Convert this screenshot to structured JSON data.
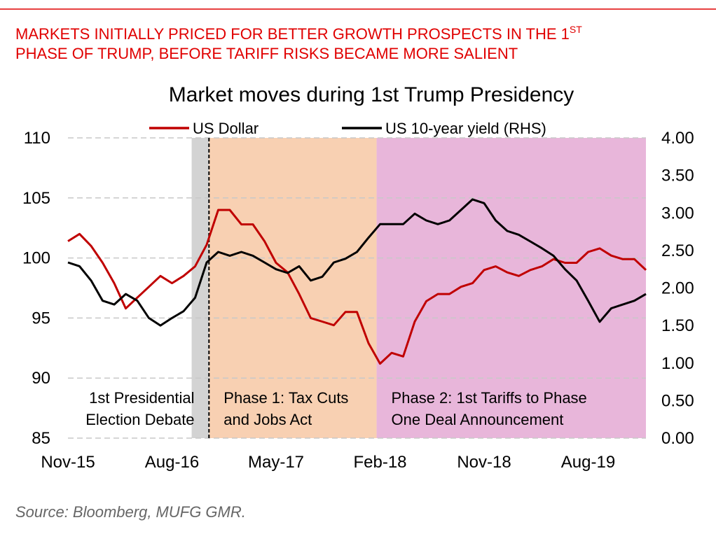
{
  "header": {
    "line1": "MARKETS INITIALLY PRICED FOR BETTER GROWTH PROSPECTS IN THE 1",
    "superscript": "ST",
    "line2": "PHASE OF TRUMP, BEFORE TARIFF RISKS BECAME MORE SALIENT"
  },
  "chart_data": {
    "type": "line",
    "title": "Market moves during 1st Trump Presidency",
    "categories": [
      "Nov-15",
      null,
      null,
      null,
      null,
      null,
      null,
      null,
      null,
      "Aug-16",
      null,
      null,
      null,
      null,
      null,
      null,
      null,
      null,
      "May-17",
      null,
      null,
      null,
      null,
      null,
      null,
      null,
      null,
      "Feb-18",
      null,
      null,
      null,
      null,
      null,
      null,
      null,
      null,
      "Nov-18",
      null,
      null,
      null,
      null,
      null,
      null,
      null,
      null,
      "Aug-19",
      null,
      null,
      null,
      null,
      null
    ],
    "series": [
      {
        "name": "US Dollar",
        "color": "#c00000",
        "axis": "y",
        "values": [
          101.4,
          102,
          101,
          99.6,
          97.9,
          95.8,
          96.7,
          97.6,
          98.5,
          97.9,
          98.5,
          99.3,
          101.1,
          104,
          104,
          102.8,
          102.8,
          101.4,
          99.6,
          98.8,
          97,
          95,
          94.7,
          94.4,
          95.5,
          95.5,
          92.9,
          91.2,
          92.1,
          91.8,
          94.7,
          96.4,
          97,
          97,
          97.6,
          97.9,
          99,
          99.3,
          98.8,
          98.5,
          99,
          99.3,
          99.9,
          99.6,
          99.6,
          100.5,
          100.8,
          100.2,
          99.9,
          99.9,
          99
        ]
      },
      {
        "name": "US 10-year yield (RHS)",
        "color": "#000000",
        "axis": "y2",
        "values": [
          2.34,
          2.29,
          2.1,
          1.83,
          1.78,
          1.92,
          1.83,
          1.6,
          1.5,
          1.6,
          1.69,
          1.87,
          2.34,
          2.48,
          2.43,
          2.48,
          2.43,
          2.34,
          2.25,
          2.2,
          2.29,
          2.1,
          2.15,
          2.34,
          2.39,
          2.48,
          2.67,
          2.85,
          2.85,
          2.85,
          2.99,
          2.9,
          2.85,
          2.9,
          3.04,
          3.18,
          3.13,
          2.9,
          2.76,
          2.71,
          2.62,
          2.53,
          2.43,
          2.25,
          2.1,
          1.83,
          1.55,
          1.73,
          1.78,
          1.83,
          1.92
        ]
      }
    ],
    "ylim": [
      85,
      110
    ],
    "yticks": [
      85,
      90,
      95,
      100,
      105,
      110
    ],
    "y2lim": [
      0,
      4
    ],
    "y2ticks": [
      {
        "value": 0,
        "label": "0.00"
      },
      {
        "value": 0.5,
        "label": "0.50"
      },
      {
        "value": 1,
        "label": "1.00"
      },
      {
        "value": 1.5,
        "label": "1.50"
      },
      {
        "value": 2,
        "label": "2.00"
      },
      {
        "value": 2.5,
        "label": "2.50"
      },
      {
        "value": 3,
        "label": "3.00"
      },
      {
        "value": 3.5,
        "label": "3.50"
      },
      {
        "value": 4,
        "label": "4.00"
      }
    ],
    "grid": true,
    "regions": [
      {
        "x_span": [
          10.7,
          12.2
        ],
        "color": "#d3d3d3",
        "label": [
          "1st Presidential",
          "Election Debate"
        ]
      },
      {
        "x_span": [
          12.2,
          26.7
        ],
        "color": "#f8d0b2",
        "dashed_start": true,
        "label": [
          "Phase 1: Tax Cuts",
          "and Jobs Act"
        ]
      },
      {
        "x_span": [
          26.7,
          50
        ],
        "color": "#e8b6da",
        "label": [
          "Phase 2: 1st Tariffs to Phase",
          "One Deal Announcement"
        ]
      }
    ]
  },
  "source": "Source: Bloomberg, MUFG GMR."
}
